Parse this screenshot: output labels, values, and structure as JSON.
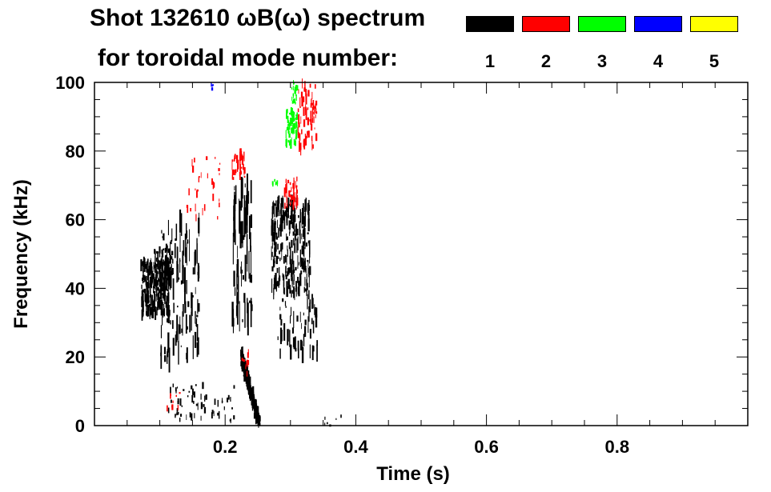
{
  "title_line1": "Shot 132610 ωB(ω) spectrum",
  "title_line2": "for toroidal mode number:",
  "legend": [
    {
      "label": "1",
      "color": "#000000"
    },
    {
      "label": "2",
      "color": "#ff0000"
    },
    {
      "label": "3",
      "color": "#00ff00"
    },
    {
      "label": "4",
      "color": "#0000ff"
    },
    {
      "label": "5",
      "color": "#ffff00"
    }
  ],
  "chart_data": {
    "type": "heatmap",
    "xlabel": "Time (s)",
    "ylabel": "Frequency (kHz)",
    "xlim": [
      0.0,
      1.0
    ],
    "ylim": [
      0,
      100
    ],
    "xticks": [
      "0.2",
      "0.4",
      "0.6",
      "0.8"
    ],
    "xtick_values": [
      0.2,
      0.4,
      0.6,
      0.8
    ],
    "yticks": [
      "0",
      "20",
      "40",
      "60",
      "80",
      "100"
    ],
    "ytick_values": [
      0,
      20,
      40,
      60,
      80,
      100
    ],
    "grid": false,
    "legend_placement": "top",
    "features": [
      {
        "mode": 1,
        "t": [
          0.07,
          0.12
        ],
        "f": [
          28,
          52
        ],
        "note": "mode 1 blob near 40 kHz"
      },
      {
        "mode": 1,
        "t": [
          0.22,
          0.25
        ],
        "f": [
          0,
          20
        ],
        "note": "chirping mode 1 down to 0 kHz"
      },
      {
        "mode": 1,
        "t": [
          0.27,
          0.33
        ],
        "f": [
          40,
          65
        ],
        "note": "mode 1 band"
      },
      {
        "mode": 2,
        "t": [
          0.21,
          0.23
        ],
        "f": [
          20,
          80
        ],
        "note": "mode 2 chirp"
      },
      {
        "mode": 2,
        "t": [
          0.29,
          0.34
        ],
        "f": [
          60,
          100
        ],
        "note": "mode 2 band"
      },
      {
        "mode": 3,
        "t": [
          0.29,
          0.31
        ],
        "f": [
          80,
          100
        ],
        "note": "mode 3 band"
      },
      {
        "mode": 4,
        "t": [
          0.178,
          0.18
        ],
        "f": [
          98,
          100
        ],
        "note": "mode 4 trace"
      }
    ]
  }
}
